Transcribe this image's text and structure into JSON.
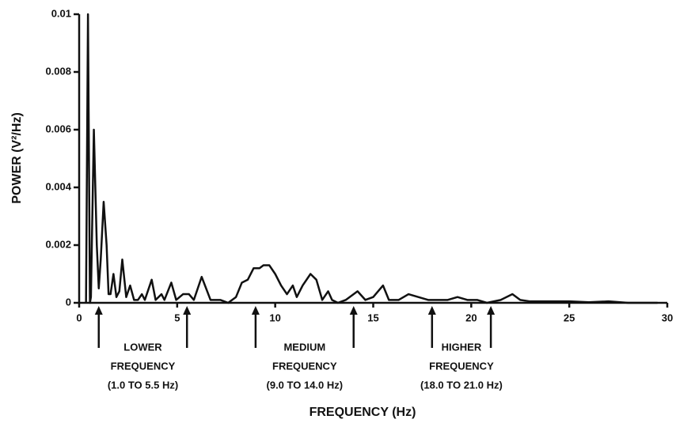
{
  "chart_data": {
    "type": "line",
    "x_label": "FREQUENCY (Hz)",
    "y_label": "POWER (V²/Hz)",
    "color": "#111111",
    "x": [
      0.35,
      0.45,
      0.55,
      0.6,
      0.75,
      0.9,
      1.0,
      1.1,
      1.25,
      1.4,
      1.5,
      1.6,
      1.75,
      1.9,
      2.05,
      2.2,
      2.4,
      2.6,
      2.8,
      3.0,
      3.2,
      3.35,
      3.7,
      3.9,
      4.2,
      4.35,
      4.7,
      4.95,
      5.3,
      5.6,
      5.85,
      6.25,
      6.7,
      7.2,
      7.6,
      8.0,
      8.3,
      8.6,
      8.9,
      9.2,
      9.4,
      9.7,
      10.0,
      10.3,
      10.6,
      10.9,
      11.1,
      11.4,
      11.8,
      12.1,
      12.4,
      12.7,
      12.9,
      13.2,
      13.6,
      14.2,
      14.6,
      15.0,
      15.5,
      15.8,
      16.3,
      16.8,
      17.3,
      17.8,
      18.3,
      18.8,
      19.3,
      19.8,
      20.3,
      20.8,
      21.5,
      22.1,
      22.5,
      23.0,
      24.0,
      25.0,
      26.0,
      27.0,
      28.0,
      29.5
    ],
    "values": [
      0,
      0.01,
      0,
      0.0002,
      0.006,
      0.002,
      0.0005,
      0.0015,
      0.0035,
      0.002,
      0.0003,
      0.0003,
      0.001,
      0.0002,
      0.0004,
      0.0015,
      0.0002,
      0.0006,
      0.0001,
      0.0001,
      0.0003,
      0.0001,
      0.0008,
      0.0001,
      0.0003,
      0.0001,
      0.0007,
      0.0001,
      0.0003,
      0.0003,
      0.0001,
      0.0009,
      0.0001,
      0.0001,
      0,
      0.0002,
      0.0007,
      0.0008,
      0.0012,
      0.0012,
      0.0013,
      0.0013,
      0.001,
      0.0006,
      0.0003,
      0.0006,
      0.0002,
      0.0006,
      0.001,
      0.0008,
      0.0001,
      0.0004,
      0.0001,
      0,
      0.0001,
      0.0004,
      0.0001,
      0.0002,
      0.0006,
      0.0001,
      0.0001,
      0.0003,
      0.0002,
      0.0001,
      0.0001,
      0.0001,
      0.0002,
      0.0001,
      0.0001,
      0,
      0.0001,
      0.0003,
      0.0001,
      5e-05,
      5e-05,
      5e-05,
      2e-05,
      5e-05,
      0,
      0
    ],
    "xlim": [
      0,
      30
    ],
    "xticks": [
      0,
      5,
      10,
      15,
      20,
      25,
      30
    ],
    "ylim": [
      0,
      0.01
    ],
    "yticks": [
      0,
      0.002,
      0.004,
      0.006,
      0.008,
      0.01
    ],
    "annotations": [
      {
        "lines": [
          "LOWER",
          "FREQUENCY",
          "(1.0 TO 5.5 Hz)"
        ],
        "from": 1.0,
        "to": 5.5
      },
      {
        "lines": [
          "MEDIUM",
          "FREQUENCY",
          "(9.0 TO 14.0 Hz)"
        ],
        "from": 9.0,
        "to": 14.0
      },
      {
        "lines": [
          "HIGHER",
          "FREQUENCY",
          "(18.0 TO 21.0 Hz)"
        ],
        "from": 18.0,
        "to": 21.0
      }
    ]
  }
}
